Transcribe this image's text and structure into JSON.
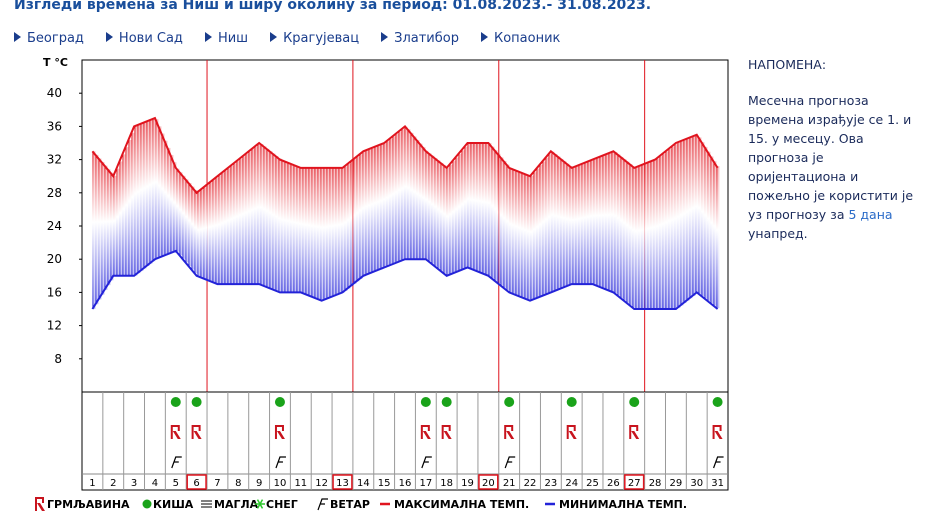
{
  "header": {
    "title": "Изгледи времена за Ниш и ширу околину за период: 01.08.2023.- 31.08.2023.",
    "nav": [
      "Београд",
      "Нови Сад",
      "Ниш",
      "Крагујевац",
      "Златибор",
      "Копаоник"
    ]
  },
  "note": {
    "title": "НАПОМЕНА:",
    "text_before": "Месечна прогноза времена израђује се 1. и 15. у месецу. Ова прогноза је оријентациона и пожељно је користити је уз прогнозу за",
    "link": "5 дана",
    "text_after": "унапред."
  },
  "chart_data": {
    "type": "line",
    "ylabel": "T °C",
    "x": [
      1,
      2,
      3,
      4,
      5,
      6,
      7,
      8,
      9,
      10,
      11,
      12,
      13,
      14,
      15,
      16,
      17,
      18,
      19,
      20,
      21,
      22,
      23,
      24,
      25,
      26,
      27,
      28,
      29,
      30,
      31
    ],
    "series": [
      {
        "name": "МАКСИМАЛНА ТЕМП.",
        "color": "#e0141e",
        "values": [
          33,
          30,
          36,
          37,
          31,
          28,
          30,
          32,
          34,
          32,
          31,
          31,
          31,
          33,
          34,
          36,
          33,
          31,
          34,
          34,
          31,
          30,
          33,
          31,
          32,
          33,
          31,
          32,
          34,
          35,
          31
        ]
      },
      {
        "name": "МИНИМАЛНА ТЕМП.",
        "color": "#2323d8",
        "values": [
          14,
          18,
          18,
          20,
          21,
          18,
          17,
          17,
          17,
          16,
          16,
          15,
          16,
          18,
          19,
          20,
          20,
          18,
          19,
          18,
          16,
          15,
          16,
          17,
          17,
          16,
          14,
          14,
          14,
          16,
          14
        ]
      }
    ],
    "ylim": [
      4,
      44
    ],
    "yticks": [
      8,
      12,
      16,
      20,
      24,
      28,
      32,
      36,
      40
    ],
    "highlight_days": [
      6,
      13,
      20,
      27
    ],
    "rain_days": [
      5,
      6,
      10,
      17,
      18,
      21,
      24,
      27,
      31
    ],
    "thunder_days": [
      5,
      6,
      10,
      17,
      18,
      21,
      24,
      27,
      31
    ],
    "wind_days": [
      5,
      10,
      17,
      21,
      31
    ],
    "legend_items": [
      "ГРМЉАВИНА",
      "КИША",
      "МАГЛА",
      "СНЕГ",
      "ВЕТАР"
    ]
  }
}
